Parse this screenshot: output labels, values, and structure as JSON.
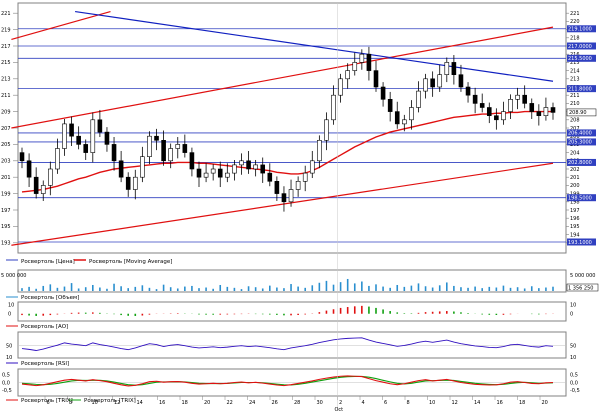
{
  "chart_data": {
    "type": "line",
    "panels": {
      "price": {
        "legend": [
          "Росвертоль [Цена]",
          "Росвертоль [Moving Average]"
        ],
        "ylim": [
          192,
          222
        ],
        "yticks": [
          "193",
          "194",
          "195",
          "196",
          "197",
          "198",
          "199",
          "200",
          "201",
          "202",
          "203",
          "204",
          "205",
          "206",
          "207",
          "208",
          "209",
          "210",
          "211",
          "212",
          "213",
          "214",
          "215",
          "216",
          "217",
          "218",
          "219",
          "220",
          "221"
        ],
        "horizontal_levels": [
          219.1,
          217.0,
          215.5,
          211.8,
          206.4,
          205.3,
          202.8,
          198.5,
          193.1
        ],
        "level_labels": [
          "219.1000",
          "217.0000",
          "215.5000",
          "211.8000",
          "206.4000",
          "205.3000",
          "202.8000",
          "198.5000",
          "193.1000"
        ],
        "last_price_label": "208.90",
        "price_open": [
          204.0,
          203.0,
          201.0,
          199.0,
          200.0,
          202.0,
          204.5,
          207.5,
          206.0,
          205.0,
          204.0,
          208.0,
          206.5,
          205.0,
          203.0,
          201.0,
          199.5,
          201.0,
          203.5,
          206.0,
          205.5,
          203.0,
          204.5,
          205.0,
          204.0,
          202.0,
          201.0,
          201.5,
          202.0,
          201.0,
          201.5,
          202.5,
          203.0,
          202.0,
          202.5,
          201.5,
          200.5,
          199.0,
          198.0,
          199.5,
          200.5,
          201.5,
          203.0,
          205.5,
          208.0,
          211.0,
          213.0,
          214.0,
          215.0,
          216.0,
          214.0,
          212.0,
          210.5,
          209.0,
          207.5,
          208.0,
          209.5,
          211.5,
          213.0,
          212.0,
          213.5,
          215.0,
          213.5,
          212.0,
          211.0,
          210.0,
          209.5,
          208.5,
          208.0,
          209.0,
          210.5,
          211.0,
          210.0,
          209.0,
          208.5,
          209.5
        ],
        "price_close": [
          203.0,
          201.0,
          199.0,
          200.0,
          202.0,
          204.5,
          207.5,
          206.0,
          205.0,
          204.0,
          208.0,
          206.5,
          205.0,
          203.0,
          201.0,
          199.5,
          201.0,
          203.5,
          206.0,
          205.5,
          203.0,
          204.5,
          205.0,
          204.0,
          202.0,
          201.0,
          201.5,
          202.0,
          201.0,
          201.5,
          202.5,
          203.0,
          202.0,
          202.5,
          201.5,
          200.5,
          199.0,
          198.0,
          199.5,
          200.5,
          201.5,
          203.0,
          205.5,
          208.0,
          211.0,
          213.0,
          214.0,
          215.0,
          216.0,
          214.0,
          212.0,
          210.5,
          209.0,
          207.5,
          208.0,
          209.5,
          211.5,
          213.0,
          212.0,
          213.5,
          215.0,
          213.5,
          212.0,
          211.0,
          210.0,
          209.5,
          208.5,
          208.0,
          209.0,
          210.5,
          211.0,
          210.0,
          209.0,
          208.5,
          209.5,
          208.9
        ],
        "moving_average": [
          199.2,
          199.3,
          199.4,
          199.5,
          199.7,
          199.9,
          200.2,
          200.5,
          200.8,
          201.0,
          201.3,
          201.6,
          201.8,
          202.0,
          202.1,
          202.2,
          202.3,
          202.4,
          202.5,
          202.6,
          202.7,
          202.7,
          202.8,
          202.8,
          202.8,
          202.7,
          202.7,
          202.6,
          202.5,
          202.4,
          202.3,
          202.2,
          202.1,
          202.0,
          201.9,
          201.8,
          201.6,
          201.5,
          201.4,
          201.4,
          201.5,
          201.8,
          202.2,
          202.7,
          203.2,
          203.7,
          204.2,
          204.7,
          205.1,
          205.5,
          205.9,
          206.2,
          206.5,
          206.7,
          206.9,
          207.1,
          207.3,
          207.5,
          207.7,
          207.9,
          208.1,
          208.3,
          208.4,
          208.5,
          208.6,
          208.7,
          208.7,
          208.8,
          208.8,
          208.9,
          208.9,
          209.0,
          209.0,
          209.0,
          209.0,
          209.0
        ]
      },
      "volume": {
        "legend": [
          "Росвертоль [Объем]"
        ],
        "ytick_label": "5 000 000",
        "ylim": [
          0,
          6000000
        ],
        "last_value_label": "1 356 250",
        "values": [
          900000,
          1300000,
          700000,
          1600000,
          2100000,
          1000000,
          1400000,
          2500000,
          800000,
          1200000,
          1900000,
          1100000,
          700000,
          2300000,
          1500000,
          900000,
          1300000,
          1800000,
          1000000,
          600000,
          2000000,
          1200000,
          800000,
          1400000,
          1600000,
          900000,
          1100000,
          700000,
          1900000,
          1300000,
          1000000,
          600000,
          1500000,
          1200000,
          800000,
          1700000,
          1100000,
          900000,
          2200000,
          1400000,
          1000000,
          1800000,
          2600000,
          3200000,
          2000000,
          2800000,
          3800000,
          2400000,
          3000000,
          1600000,
          2100000,
          1400000,
          1000000,
          1900000,
          1300000,
          1700000,
          2400000,
          1500000,
          1100000,
          1800000,
          2700000,
          1600000,
          1200000,
          1000000,
          1400000,
          900000,
          1300000,
          1100000,
          1700000,
          1000000,
          1200000,
          800000,
          1500000,
          900000,
          1100000,
          1356250
        ]
      },
      "ao": {
        "legend": [
          "Росвертоль [AO]"
        ],
        "yticks": [
          "10",
          "0"
        ],
        "ylim": [
          -7,
          12
        ],
        "values": [
          -1.5,
          -2.0,
          -2.5,
          -2.2,
          -1.5,
          -0.8,
          0.2,
          1.0,
          1.3,
          1.2,
          1.5,
          1.0,
          0.3,
          -0.5,
          -1.5,
          -2.3,
          -2.5,
          -2.0,
          -1.0,
          -0.2,
          0.2,
          0.4,
          0.6,
          0.3,
          -0.2,
          -0.8,
          -1.0,
          -1.1,
          -1.0,
          -0.8,
          -0.6,
          -0.4,
          -0.3,
          -0.4,
          -0.6,
          -0.9,
          -1.3,
          -1.8,
          -1.8,
          -1.4,
          -0.8,
          0.3,
          1.8,
          3.5,
          5.0,
          6.5,
          7.5,
          8.3,
          8.8,
          8.0,
          6.5,
          4.8,
          3.0,
          1.5,
          0.6,
          0.5,
          1.0,
          1.8,
          2.2,
          2.6,
          3.0,
          2.5,
          1.6,
          0.7,
          -0.2,
          -0.8,
          -1.2,
          -1.4,
          -1.2,
          -0.6,
          -0.1,
          0.0,
          -0.4,
          -0.7,
          -0.4,
          -0.2
        ]
      },
      "rsi": {
        "legend": [
          "Росвертоль [RSI]"
        ],
        "yticks": [
          "50",
          "10"
        ],
        "ylim": [
          10,
          95
        ],
        "values": [
          40,
          37,
          33,
          38,
          45,
          52,
          60,
          56,
          53,
          50,
          60,
          54,
          50,
          45,
          40,
          36,
          42,
          50,
          57,
          54,
          47,
          52,
          54,
          50,
          45,
          42,
          44,
          46,
          43,
          45,
          48,
          50,
          47,
          49,
          46,
          43,
          39,
          36,
          42,
          46,
          50,
          55,
          61,
          66,
          71,
          74,
          76,
          77,
          78,
          70,
          63,
          58,
          53,
          48,
          51,
          56,
          62,
          66,
          62,
          66,
          70,
          63,
          57,
          53,
          49,
          47,
          44,
          43,
          47,
          53,
          55,
          51,
          47,
          45,
          50,
          48
        ]
      },
      "trix": {
        "legend": [
          "Росвертоль [TRIX]",
          "Росвертоль [TRIX]"
        ],
        "yticks": [
          "0,5",
          "0,0",
          "-0,5"
        ],
        "ylim": [
          -0.8,
          0.8
        ],
        "series_a": [
          -0.1,
          -0.15,
          -0.2,
          -0.15,
          -0.05,
          0.05,
          0.15,
          0.2,
          0.15,
          0.1,
          0.18,
          0.12,
          0.05,
          -0.05,
          -0.15,
          -0.22,
          -0.18,
          -0.08,
          0.05,
          0.08,
          0.02,
          0.05,
          0.06,
          0.02,
          -0.05,
          -0.1,
          -0.08,
          -0.05,
          -0.08,
          -0.05,
          0.0,
          0.03,
          -0.02,
          0.01,
          -0.04,
          -0.1,
          -0.16,
          -0.2,
          -0.14,
          -0.06,
          0.02,
          0.1,
          0.2,
          0.28,
          0.35,
          0.4,
          0.42,
          0.4,
          0.38,
          0.25,
          0.12,
          0.02,
          -0.08,
          -0.14,
          -0.08,
          0.02,
          0.12,
          0.18,
          0.1,
          0.15,
          0.2,
          0.1,
          0.0,
          -0.06,
          -0.12,
          -0.14,
          -0.16,
          -0.15,
          -0.08,
          0.02,
          0.05,
          0.0,
          -0.06,
          -0.08,
          -0.02,
          0.0
        ],
        "series_b": [
          -0.05,
          -0.08,
          -0.12,
          -0.14,
          -0.12,
          -0.06,
          0.02,
          0.1,
          0.14,
          0.13,
          0.14,
          0.14,
          0.1,
          0.03,
          -0.06,
          -0.14,
          -0.17,
          -0.14,
          -0.06,
          0.02,
          0.04,
          0.04,
          0.05,
          0.04,
          0.0,
          -0.05,
          -0.07,
          -0.07,
          -0.07,
          -0.06,
          -0.03,
          0.0,
          0.0,
          0.0,
          -0.02,
          -0.06,
          -0.11,
          -0.15,
          -0.16,
          -0.12,
          -0.05,
          0.03,
          0.11,
          0.19,
          0.27,
          0.33,
          0.37,
          0.39,
          0.39,
          0.34,
          0.25,
          0.14,
          0.04,
          -0.05,
          -0.09,
          -0.05,
          0.03,
          0.1,
          0.12,
          0.13,
          0.15,
          0.13,
          0.07,
          0.01,
          -0.05,
          -0.09,
          -0.12,
          -0.14,
          -0.12,
          -0.06,
          -0.01,
          0.01,
          -0.02,
          -0.05,
          -0.04,
          -0.02
        ]
      }
    },
    "x_tick_labels": [
      "6",
      "8",
      "10",
      "12",
      "14",
      "16",
      "18",
      "20",
      "22",
      "24",
      "26",
      "28",
      "30",
      "2",
      "4",
      "6",
      "8",
      "10",
      "12",
      "14",
      "16",
      "18",
      "20"
    ],
    "x_month_label": "Oct",
    "colors": {
      "up_candle": "#ffffff",
      "down_candle": "#000000",
      "moving_average": "#e01010",
      "blue_trend": "#1020c0",
      "red_channel": "#e01010",
      "horizontal_level": "#3040c0",
      "ao_up": "#e01010",
      "ao_down": "#10a010",
      "rsi": "#3010c0",
      "trix_a": "#e01010",
      "trix_b": "#10a010",
      "volume": "#2a8fcf",
      "label_bg": "#3040c0"
    }
  }
}
